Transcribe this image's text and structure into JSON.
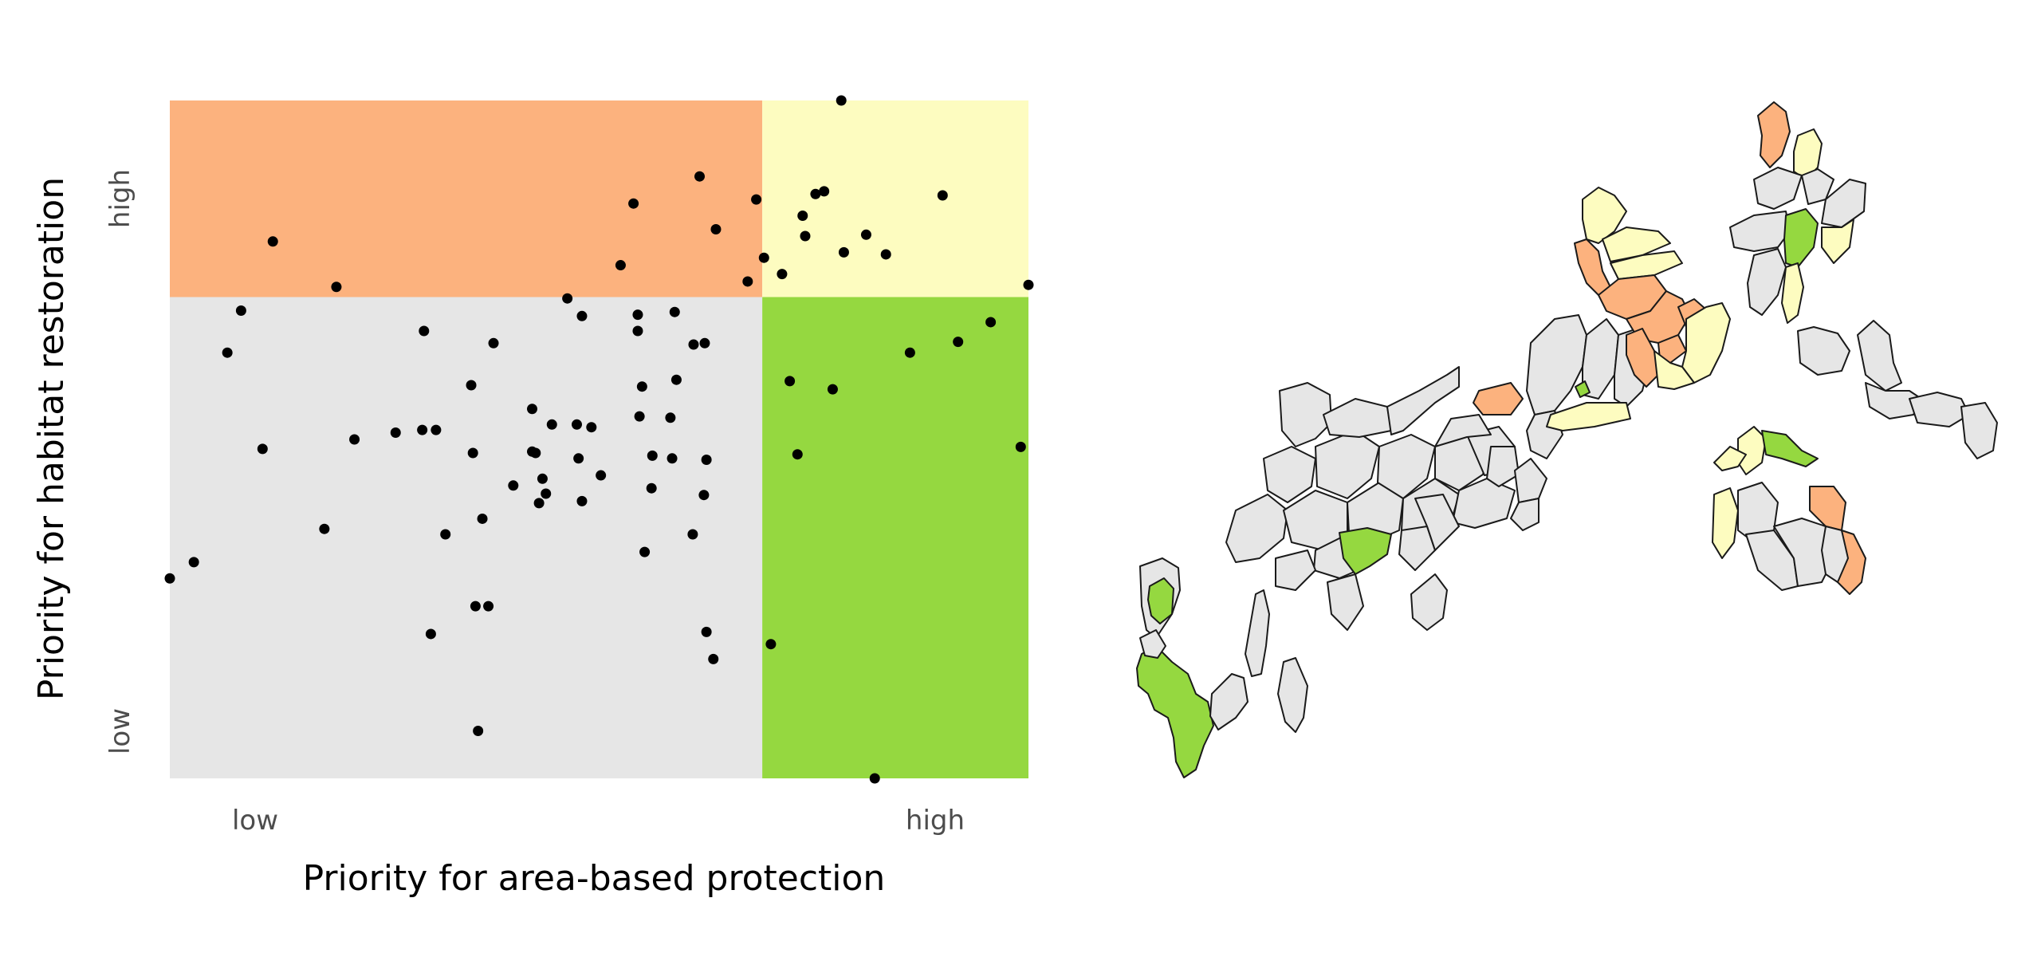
{
  "chart_data": [
    {
      "type": "scatter",
      "xlabel": "Priority for area-based protection",
      "ylabel": "Priority for habitat restoration",
      "xlim": [
        0,
        100
      ],
      "ylim": [
        0,
        100
      ],
      "x_tick_labels": [
        {
          "value": 10,
          "label": "low"
        },
        {
          "value": 90,
          "label": "high"
        }
      ],
      "y_tick_labels": [
        {
          "value": 6,
          "label": "low"
        },
        {
          "value": 86.5,
          "label": "high"
        }
      ],
      "thresholds": {
        "x": 69,
        "y": 71
      },
      "quadrant_colors": {
        "low_protection_high_restoration": "#fcb27e",
        "high_protection_high_restoration": "#fdfcc0",
        "low_protection_low_restoration": "#e6e6e6",
        "high_protection_low_restoration": "#95d840"
      },
      "point_color": "#000000",
      "grid": false,
      "legend": "none",
      "points": [
        [
          0,
          29.5
        ],
        [
          2.8,
          31.9
        ],
        [
          6.7,
          62.8
        ],
        [
          8.3,
          69.0
        ],
        [
          10.8,
          48.6
        ],
        [
          12.0,
          79.2
        ],
        [
          18.0,
          36.8
        ],
        [
          19.4,
          72.5
        ],
        [
          21.5,
          50.0
        ],
        [
          26.3,
          51.0
        ],
        [
          29.4,
          51.4
        ],
        [
          29.6,
          66.0
        ],
        [
          30.4,
          21.3
        ],
        [
          31.0,
          51.4
        ],
        [
          32.1,
          36.0
        ],
        [
          35.1,
          58.0
        ],
        [
          35.3,
          48.0
        ],
        [
          35.6,
          25.4
        ],
        [
          35.9,
          7.0
        ],
        [
          36.4,
          38.3
        ],
        [
          37.1,
          25.4
        ],
        [
          37.7,
          64.2
        ],
        [
          40.0,
          43.2
        ],
        [
          42.2,
          54.5
        ],
        [
          42.2,
          48.2
        ],
        [
          42.6,
          48.0
        ],
        [
          43.0,
          40.6
        ],
        [
          43.4,
          44.2
        ],
        [
          43.8,
          42.0
        ],
        [
          44.5,
          52.2
        ],
        [
          46.3,
          70.8
        ],
        [
          47.4,
          52.2
        ],
        [
          47.6,
          47.2
        ],
        [
          48.0,
          68.2
        ],
        [
          48.0,
          40.9
        ],
        [
          49.1,
          51.8
        ],
        [
          50.2,
          44.7
        ],
        [
          52.5,
          75.7
        ],
        [
          54.0,
          84.8
        ],
        [
          54.5,
          68.4
        ],
        [
          54.5,
          66.0
        ],
        [
          54.7,
          53.4
        ],
        [
          55.0,
          57.8
        ],
        [
          55.3,
          33.4
        ],
        [
          56.1,
          42.8
        ],
        [
          56.2,
          47.6
        ],
        [
          58.3,
          53.2
        ],
        [
          58.5,
          47.2
        ],
        [
          58.8,
          68.8
        ],
        [
          59.0,
          58.8
        ],
        [
          60.9,
          36.0
        ],
        [
          61.0,
          64.0
        ],
        [
          61.7,
          88.8
        ],
        [
          62.2,
          41.8
        ],
        [
          62.3,
          64.2
        ],
        [
          62.5,
          47.0
        ],
        [
          62.5,
          21.6
        ],
        [
          63.3,
          17.6
        ],
        [
          63.6,
          81.0
        ],
        [
          67.3,
          73.3
        ],
        [
          68.3,
          85.4
        ],
        [
          69.2,
          76.8
        ],
        [
          70.0,
          19.8
        ],
        [
          71.3,
          74.4
        ],
        [
          72.2,
          58.6
        ],
        [
          73.7,
          83.0
        ],
        [
          73.1,
          47.8
        ],
        [
          74.0,
          80.0
        ],
        [
          75.2,
          86.2
        ],
        [
          76.2,
          86.6
        ],
        [
          77.2,
          57.4
        ],
        [
          78.5,
          77.6
        ],
        [
          81.1,
          80.2
        ],
        [
          82.1,
          0
        ],
        [
          83.4,
          77.3
        ],
        [
          86.2,
          62.8
        ],
        [
          90.0,
          86.0
        ],
        [
          91.8,
          64.4
        ],
        [
          95.6,
          67.3
        ],
        [
          99.1,
          48.9
        ],
        [
          100,
          72.8
        ],
        [
          78.2,
          100
        ]
      ]
    },
    {
      "type": "map",
      "category_colors": {
        "low_low": "#e6e6e6",
        "low_protection_high_restoration": "#fcb27e",
        "high_high": "#fdfcc0",
        "high_protection_low_restoration": "#95d840"
      },
      "outline_color": "#1a1a1a"
    }
  ]
}
